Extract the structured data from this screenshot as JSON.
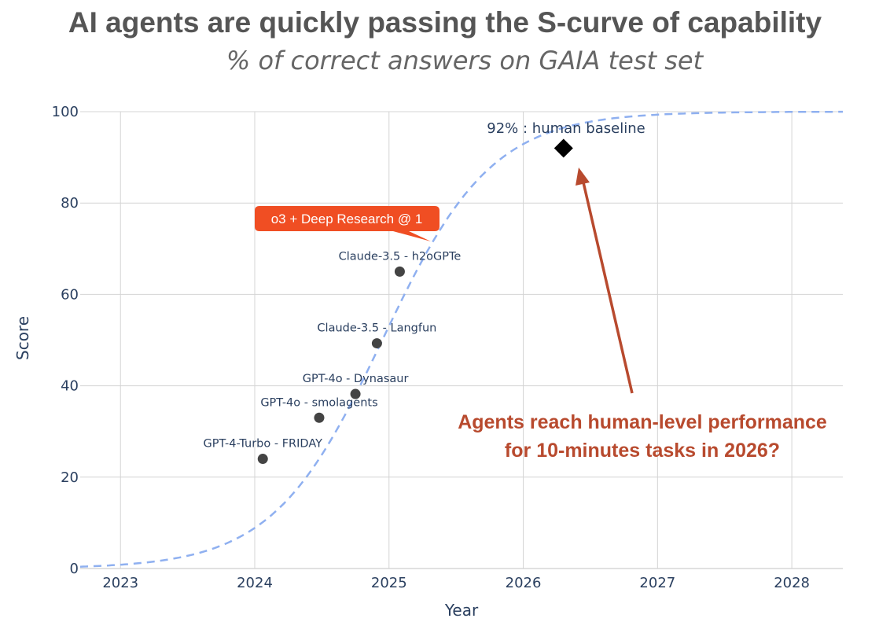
{
  "colors": {
    "curve": "#8fb0f0",
    "point": "#444444",
    "baseline_marker": "#000000",
    "arrow": "#b84a2e",
    "badge": "#f04e23",
    "grid": "#d4d4d4"
  },
  "chart_data": {
    "type": "scatter",
    "title": "AI agents are quickly passing the S-curve of capability",
    "subtitle": "% of correct answers on GAIA test set",
    "xlabel": "Year",
    "ylabel": "Score",
    "xlim": [
      2022.7,
      2028.38
    ],
    "ylim": [
      0,
      100
    ],
    "x_ticks": [
      2023,
      2024,
      2025,
      2026,
      2027,
      2028
    ],
    "y_ticks": [
      0,
      20,
      40,
      60,
      80,
      100
    ],
    "points": [
      {
        "label": "GPT-4-Turbo - FRIDAY",
        "x": 2024.06,
        "y": 24
      },
      {
        "label": "GPT-4o - smolagents",
        "x": 2024.48,
        "y": 33
      },
      {
        "label": "GPT-4o - Dynasaur",
        "x": 2024.75,
        "y": 38.2
      },
      {
        "label": "Claude-3.5 - Langfun",
        "x": 2024.91,
        "y": 49.3
      },
      {
        "label": "Claude-3.5 - h2oGPTe",
        "x": 2025.08,
        "y": 65
      }
    ],
    "human_baseline": {
      "label": "92% : human baseline",
      "x": 2026.3,
      "y": 92
    },
    "trend_curve": {
      "style": "dashed",
      "logistic_midpoint": 2024.95,
      "logistic_rate": 2.45,
      "max": 100
    }
  },
  "badge": {
    "text": "o3 + Deep Research @ 1"
  },
  "callout": {
    "line1": "Agents reach human-level performance",
    "line2": "for 10-minutes tasks in 2026?"
  }
}
